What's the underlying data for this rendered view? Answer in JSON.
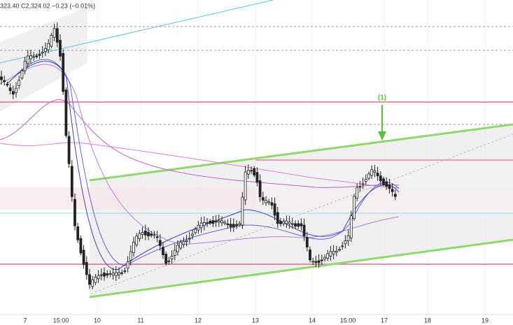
{
  "header": {
    "ohlc": "323.40  C2,324.02  −0.23 (−0.01%)"
  },
  "annotation": {
    "label": "(1)"
  },
  "x_axis": {
    "labels": [
      "7",
      "15:00",
      "10",
      "11",
      "12",
      "13",
      "14",
      "15:00",
      "17",
      "18",
      "19"
    ]
  }
}
